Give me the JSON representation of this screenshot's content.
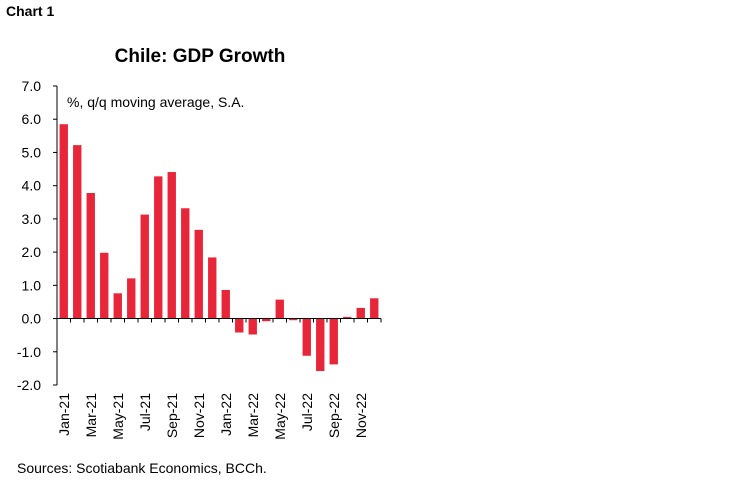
{
  "header": {
    "chart_label": "Chart 1"
  },
  "footer": {
    "source": "Sources: Scotiabank Economics, BCCh."
  },
  "colors": {
    "bar": "#e8263a",
    "axis": "#000000",
    "text": "#000000"
  },
  "chart_data": {
    "type": "bar",
    "title": "Chile: GDP Growth",
    "annotation": "%, q/q moving average, S.A.",
    "xlabel": "",
    "ylabel": "",
    "ylim": [
      -2.0,
      7.0
    ],
    "yticks": [
      "7.0",
      "6.0",
      "5.0",
      "4.0",
      "3.0",
      "2.0",
      "1.0",
      "0.0",
      "-1.0",
      "-2.0"
    ],
    "grid": false,
    "legend": "none",
    "categories": [
      "Jan-21",
      "Feb-21",
      "Mar-21",
      "Apr-21",
      "May-21",
      "Jun-21",
      "Jul-21",
      "Aug-21",
      "Sep-21",
      "Oct-21",
      "Nov-21",
      "Dec-21",
      "Jan-22",
      "Feb-22",
      "Mar-22",
      "Apr-22",
      "May-22",
      "Jun-22",
      "Jul-22",
      "Aug-22",
      "Sep-22",
      "Oct-22",
      "Nov-22",
      "Dec-22"
    ],
    "xtick_labels": [
      "Jan-21",
      "Mar-21",
      "May-21",
      "Jul-21",
      "Sep-21",
      "Nov-21",
      "Jan-22",
      "Mar-22",
      "May-22",
      "Jul-22",
      "Sep-22",
      "Nov-22"
    ],
    "values": [
      5.85,
      5.22,
      3.78,
      1.98,
      0.76,
      1.21,
      3.13,
      4.28,
      4.41,
      3.32,
      2.67,
      1.84,
      0.86,
      -0.42,
      -0.48,
      -0.08,
      0.57,
      -0.05,
      -1.12,
      -1.58,
      -1.38,
      0.05,
      0.32,
      0.61
    ]
  }
}
